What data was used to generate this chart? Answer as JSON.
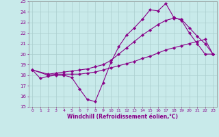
{
  "xlabel": "Windchill (Refroidissement éolien,°C)",
  "xlim": [
    -0.5,
    23.5
  ],
  "ylim": [
    15,
    25
  ],
  "xticks": [
    0,
    1,
    2,
    3,
    4,
    5,
    6,
    7,
    8,
    9,
    10,
    11,
    12,
    13,
    14,
    15,
    16,
    17,
    18,
    19,
    20,
    21,
    22,
    23
  ],
  "yticks": [
    15,
    16,
    17,
    18,
    19,
    20,
    21,
    22,
    23,
    24,
    25
  ],
  "line_color": "#880088",
  "background_color": "#c8eaea",
  "grid_color": "#aacece",
  "line1_x": [
    0,
    1,
    2,
    3,
    4,
    5,
    6,
    7,
    8,
    9,
    10,
    11,
    12,
    13,
    14,
    15,
    16,
    17,
    18,
    19,
    20,
    21,
    22,
    23
  ],
  "line1_y": [
    18.5,
    17.7,
    17.9,
    18.0,
    18.0,
    17.8,
    16.7,
    15.7,
    15.5,
    17.3,
    19.2,
    20.7,
    21.8,
    22.5,
    23.3,
    24.2,
    24.1,
    24.8,
    23.5,
    23.2,
    22.0,
    21.0,
    20.0,
    20.0
  ],
  "line2_x": [
    0,
    2,
    3,
    4,
    5,
    6,
    7,
    8,
    9,
    10,
    11,
    12,
    13,
    14,
    15,
    16,
    17,
    18,
    19,
    20,
    21,
    22,
    23
  ],
  "line2_y": [
    18.5,
    18.0,
    18.1,
    18.1,
    18.1,
    18.1,
    18.2,
    18.3,
    18.5,
    18.7,
    18.9,
    19.1,
    19.3,
    19.6,
    19.8,
    20.1,
    20.4,
    20.6,
    20.8,
    21.0,
    21.2,
    21.4,
    20.0
  ],
  "line3_x": [
    0,
    2,
    3,
    4,
    5,
    6,
    7,
    8,
    9,
    10,
    11,
    12,
    13,
    14,
    15,
    16,
    17,
    18,
    19,
    20,
    21,
    22,
    23
  ],
  "line3_y": [
    18.5,
    18.1,
    18.2,
    18.3,
    18.4,
    18.5,
    18.6,
    18.8,
    19.0,
    19.4,
    20.0,
    20.6,
    21.2,
    21.8,
    22.3,
    22.8,
    23.2,
    23.4,
    23.3,
    22.5,
    21.7,
    21.0,
    20.0
  ]
}
